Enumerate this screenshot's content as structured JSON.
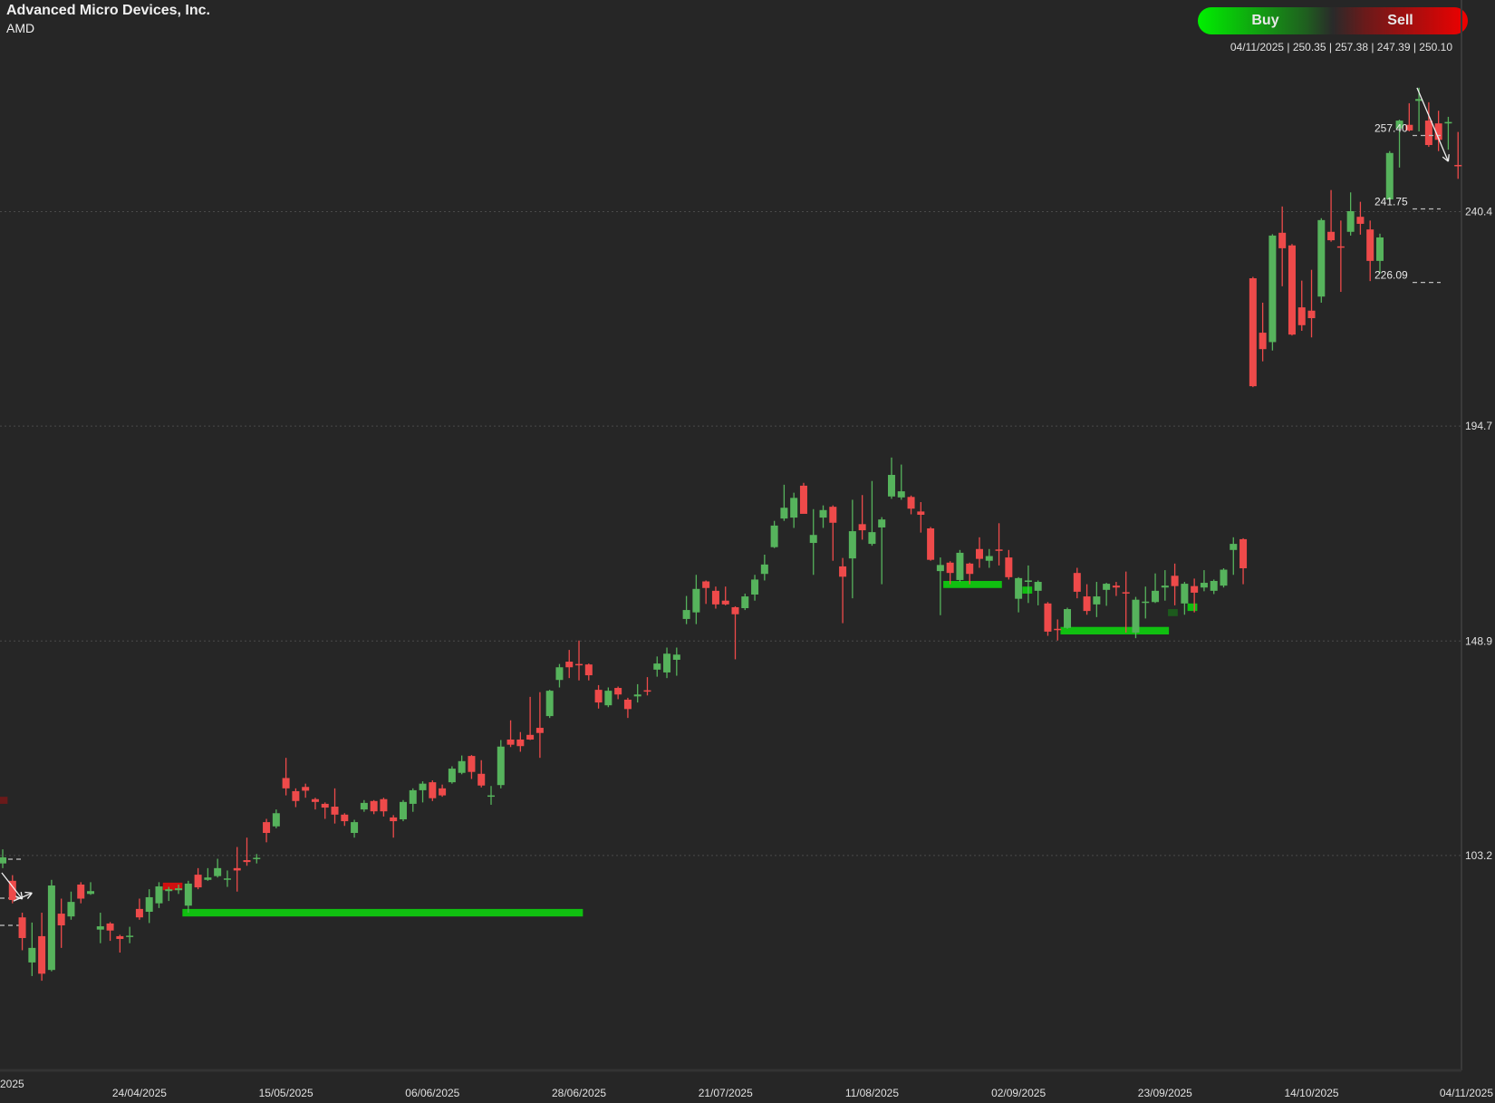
{
  "header": {
    "title": "Advanced Micro Devices, Inc.",
    "ticker": "AMD"
  },
  "trade": {
    "buy_label": "Buy",
    "sell_label": "Sell"
  },
  "ohlc_readout": "04/11/2025 | 250.35 | 257.38 | 247.39 | 250.10",
  "colors": {
    "background": "#262626",
    "up": "#56b35c",
    "down": "#ee4a4a",
    "zone": "#10c010",
    "grid": "#444444"
  },
  "chart_data": {
    "type": "candlestick",
    "title": "",
    "ylim": [
      57.4,
      285.5
    ],
    "grid": true,
    "y_ticks": [
      "240.4",
      "194.7",
      "148.9",
      "103.2"
    ],
    "x_ticks_partial": "2025",
    "x_ticks": [
      "24/04/2025",
      "15/05/2025",
      "06/06/2025",
      "28/06/2025",
      "21/07/2025",
      "11/08/2025",
      "02/09/2025",
      "23/09/2025",
      "14/10/2025",
      "04/11/2025"
    ],
    "candles_ohlc": [
      [
        101.5,
        104.5,
        100.5,
        102.8
      ],
      [
        97.8,
        99,
        93,
        93.7
      ],
      [
        90,
        91,
        83,
        85.6
      ],
      [
        80.4,
        88.9,
        77.5,
        83.5
      ],
      [
        86,
        91,
        76.5,
        78
      ],
      [
        78.8,
        98,
        78.5,
        96.8
      ],
      [
        90.8,
        94,
        83.5,
        88.3
      ],
      [
        90.2,
        95.5,
        89.5,
        93.3
      ],
      [
        97,
        97.5,
        93,
        94
      ],
      [
        95,
        97.5,
        94.8,
        95.6
      ],
      [
        87.4,
        91,
        84.5,
        88.1
      ],
      [
        88.7,
        89,
        85,
        87.2
      ],
      [
        86,
        86.3,
        82.5,
        85.4
      ],
      [
        85.9,
        88,
        84.5,
        86.1
      ],
      [
        91.8,
        94,
        89.5,
        90
      ],
      [
        91.2,
        96,
        88.8,
        94.3
      ],
      [
        93,
        97.5,
        92,
        96.6
      ],
      [
        95.6,
        96.5,
        93.5,
        96
      ],
      [
        95.8,
        97,
        95,
        96.2
      ],
      [
        92.5,
        97.8,
        91,
        97.2
      ],
      [
        99.1,
        100.5,
        96,
        96.4
      ],
      [
        98,
        100.5,
        97.8,
        98.5
      ],
      [
        98.8,
        102.5,
        98.5,
        100.5
      ],
      [
        98.1,
        100,
        96.5,
        98.3
      ],
      [
        100.5,
        105,
        95.5,
        100
      ],
      [
        102.2,
        107,
        101,
        101.8
      ],
      [
        102.5,
        103.5,
        101.5,
        102.7
      ],
      [
        110.3,
        111,
        106,
        108
      ],
      [
        109.4,
        113,
        109,
        112.2
      ],
      [
        119.7,
        124,
        116,
        117.5
      ],
      [
        116.9,
        117.5,
        113.5,
        114.8
      ],
      [
        117.8,
        118.5,
        115.5,
        117
      ],
      [
        115.2,
        115.5,
        113,
        114.6
      ],
      [
        114.2,
        114.5,
        111,
        113.4
      ],
      [
        113.6,
        117.5,
        110,
        111.9
      ],
      [
        111.9,
        112.2,
        109.5,
        110.5
      ],
      [
        108,
        110.8,
        107,
        110.3
      ],
      [
        113,
        115,
        112.5,
        114.4
      ],
      [
        114.8,
        115,
        112,
        112.6
      ],
      [
        115.2,
        115.5,
        111.5,
        112.6
      ],
      [
        111.3,
        111.8,
        107,
        110.5
      ],
      [
        110.9,
        115,
        110.5,
        114.6
      ],
      [
        114.2,
        117.5,
        112.5,
        117.1
      ],
      [
        117.1,
        119,
        114.5,
        118.5
      ],
      [
        118.8,
        119.2,
        114.8,
        115.4
      ],
      [
        117.5,
        118.3,
        115.7,
        116
      ],
      [
        118.8,
        122.2,
        118.5,
        121.7
      ],
      [
        120.8,
        124.5,
        120.5,
        123.3
      ],
      [
        124.4,
        124.6,
        119.5,
        121
      ],
      [
        120.6,
        123.5,
        117.7,
        118.1
      ],
      [
        115.8,
        118,
        114,
        116
      ],
      [
        118.2,
        127.8,
        117.5,
        126.4
      ],
      [
        127.9,
        132,
        126.3,
        126.8
      ],
      [
        127.9,
        129.5,
        125.3,
        126.5
      ],
      [
        128.9,
        137,
        127.8,
        127.9
      ],
      [
        130.4,
        138,
        124,
        129.3
      ],
      [
        132.9,
        138.5,
        132.5,
        138.3
      ],
      [
        140.6,
        144,
        139,
        143.3
      ],
      [
        144.5,
        147,
        141,
        143.3
      ],
      [
        144,
        149,
        140.5,
        143.8
      ],
      [
        143.9,
        144.1,
        140.5,
        141.6
      ],
      [
        138.5,
        139.5,
        134.5,
        135.8
      ],
      [
        135.2,
        139,
        134.8,
        138.3
      ],
      [
        138.9,
        139.2,
        136.5,
        137.5
      ],
      [
        136.4,
        136.8,
        132.5,
        134.4
      ],
      [
        137.1,
        139.7,
        135.8,
        137.5
      ],
      [
        138.4,
        141.2,
        137.3,
        138.2
      ],
      [
        142.8,
        145.6,
        141.3,
        144.1
      ],
      [
        142.2,
        147.5,
        141,
        146.2
      ],
      [
        144.9,
        147.5,
        141.5,
        146
      ],
      [
        153.6,
        158.5,
        152.5,
        155.5
      ],
      [
        155,
        163,
        152.5,
        160
      ],
      [
        161.6,
        161.8,
        156.8,
        160.2
      ],
      [
        159.6,
        160.5,
        155.8,
        156.7
      ],
      [
        157.5,
        160.5,
        156.5,
        156.7
      ],
      [
        156.1,
        156.3,
        145,
        154.6
      ],
      [
        155.9,
        159,
        155.5,
        158.4
      ],
      [
        158.8,
        163,
        157.5,
        162
      ],
      [
        163.2,
        167.3,
        161.8,
        165.2
      ],
      [
        168.9,
        174.5,
        168.7,
        173.5
      ],
      [
        175,
        182.2,
        174.5,
        177.3
      ],
      [
        175.2,
        180.5,
        173,
        179.4
      ],
      [
        182,
        182.6,
        178,
        176
      ],
      [
        169.8,
        177,
        163,
        171.5
      ],
      [
        175.2,
        177.8,
        173,
        176.8
      ],
      [
        177.5,
        177.8,
        166,
        174.1
      ],
      [
        164.8,
        166.6,
        152.7,
        162.6
      ],
      [
        166.5,
        179,
        158,
        172.3
      ],
      [
        173.8,
        180,
        170.5,
        172.5
      ],
      [
        169.6,
        183,
        169.2,
        172.1
      ],
      [
        173.1,
        175.3,
        161,
        174.8
      ],
      [
        179.7,
        188,
        179.2,
        184.3
      ],
      [
        179.5,
        186.5,
        179,
        180.8
      ],
      [
        179.6,
        179.9,
        175.9,
        177.1
      ],
      [
        176.5,
        178.5,
        172,
        175.8
      ],
      [
        172.9,
        173.2,
        166,
        166.2
      ],
      [
        163.8,
        166.7,
        154.4,
        165.1
      ],
      [
        165.6,
        165.9,
        161,
        163.4
      ],
      [
        161.9,
        168.3,
        161.5,
        167.7
      ],
      [
        165.4,
        165.6,
        161,
        163.2
      ],
      [
        168.5,
        171,
        164.5,
        166.4
      ],
      [
        166,
        168.5,
        164.5,
        167
      ],
      [
        168.4,
        174,
        165,
        168.2
      ],
      [
        166.7,
        168.3,
        162,
        162.5
      ],
      [
        157.9,
        162.5,
        155,
        162.3
      ],
      [
        161.5,
        165,
        157,
        161.8
      ],
      [
        159.6,
        161.8,
        156.5,
        161.5
      ],
      [
        156.9,
        157.2,
        150,
        150.9
      ],
      [
        151.5,
        153.5,
        149,
        151.3
      ],
      [
        151.7,
        156,
        151.5,
        155.7
      ],
      [
        163.4,
        164.5,
        158,
        159.4
      ],
      [
        158.4,
        161,
        154.5,
        155.3
      ],
      [
        156.7,
        161.5,
        154,
        158.4
      ],
      [
        159.8,
        161.3,
        156.4,
        161.1
      ],
      [
        160.7,
        161.5,
        158.5,
        160.3
      ],
      [
        159.3,
        163.7,
        150.7,
        159.1
      ],
      [
        150.7,
        158.3,
        149.5,
        157.7
      ],
      [
        157.1,
        160.5,
        153.7,
        157.3
      ],
      [
        157.2,
        163.3,
        157,
        159.6
      ],
      [
        160.3,
        164,
        157.5,
        160.7
      ],
      [
        162.8,
        165.4,
        156.5,
        160.6
      ],
      [
        156.9,
        161.5,
        154.5,
        161.1
      ],
      [
        160.6,
        162.2,
        155,
        159.2
      ],
      [
        160.3,
        164,
        159.5,
        161.3
      ],
      [
        159.6,
        162,
        158.9,
        161.7
      ],
      [
        160.7,
        164.4,
        160.3,
        164.1
      ],
      [
        168.3,
        171,
        163,
        169.6
      ],
      [
        170.6,
        170.8,
        161,
        164.4
      ],
      [
        226.2,
        226.5,
        203,
        203.2
      ],
      [
        214.6,
        221,
        208.5,
        211.1
      ],
      [
        212.6,
        235.6,
        210.8,
        235.3
      ],
      [
        235.9,
        241.5,
        224.5,
        232.6
      ],
      [
        233.2,
        233.5,
        214,
        214.2
      ],
      [
        220,
        225.7,
        215,
        216.2
      ],
      [
        219.3,
        228,
        213.6,
        217.7
      ],
      [
        222.3,
        239,
        221,
        238.6
      ],
      [
        236.1,
        245,
        234,
        234.3
      ],
      [
        233,
        238.5,
        223.3,
        232.8
      ],
      [
        236.1,
        244.5,
        235.3,
        240.5
      ],
      [
        239.3,
        242.5,
        235.5,
        237.8
      ],
      [
        236.6,
        238.5,
        225.6,
        229.9
      ],
      [
        229.9,
        235.7,
        227.2,
        234.9
      ],
      [
        243,
        253.3,
        242.5,
        252.9
      ],
      [
        258.1,
        260,
        249.8,
        259.8
      ],
      [
        258.9,
        263.5,
        257.5,
        257.7
      ],
      [
        264,
        266.8,
        257.5,
        264.4
      ],
      [
        259.8,
        263.7,
        254.2,
        254.6
      ],
      [
        259.2,
        261.9,
        253.3,
        255.7
      ],
      [
        259.2,
        260.6,
        253.6,
        259.5
      ],
      [
        250.35,
        257.38,
        247.39,
        250.1
      ]
    ],
    "zones": [
      {
        "from_candle": 19.4,
        "to_candle": 60.4,
        "low": 90.2,
        "high": 91.8,
        "color": "#10c010"
      },
      {
        "from_candle": 97.3,
        "to_candle": 103.3,
        "low": 160.2,
        "high": 161.7,
        "color": "#10c010"
      },
      {
        "from_candle": 109.3,
        "to_candle": 120.4,
        "low": 150.3,
        "high": 151.9,
        "color": "#10c010"
      },
      {
        "from_candle": 105.4,
        "to_candle": 106.4,
        "low": 159.0,
        "high": 160.5,
        "color": "#10c010"
      },
      {
        "from_candle": 122.3,
        "to_candle": 123.3,
        "low": 155.3,
        "high": 156.9,
        "color": "#10c010"
      },
      {
        "from_candle": 120.3,
        "to_candle": 121.3,
        "low": 154.2,
        "high": 155.7,
        "color": "#1d5a1d"
      },
      {
        "from_candle": 17.4,
        "to_candle": 19.4,
        "low": 95.8,
        "high": 97.4,
        "color": "#d01010"
      },
      {
        "from_candle": 0.7,
        "to_candle": 1.5,
        "low": 114.2,
        "high": 115.7,
        "color": "#6a1a1a"
      }
    ],
    "levels": [
      {
        "label": "257.40",
        "value": 257.4
      },
      {
        "label": "241.75",
        "value": 241.75
      },
      {
        "label": "226.09",
        "value": 226.09
      }
    ],
    "left_levels": [
      102.4,
      94.1,
      88.3
    ],
    "arrows": [
      {
        "from": [
          145.8,
          266.8
        ],
        "to": [
          149.0,
          251.1
        ]
      },
      {
        "from": [
          0.9,
          99.5
        ],
        "to": [
          3.0,
          93.9
        ]
      },
      {
        "from": [
          2.1,
          93.5
        ],
        "to": [
          4.0,
          95.2
        ]
      }
    ]
  }
}
